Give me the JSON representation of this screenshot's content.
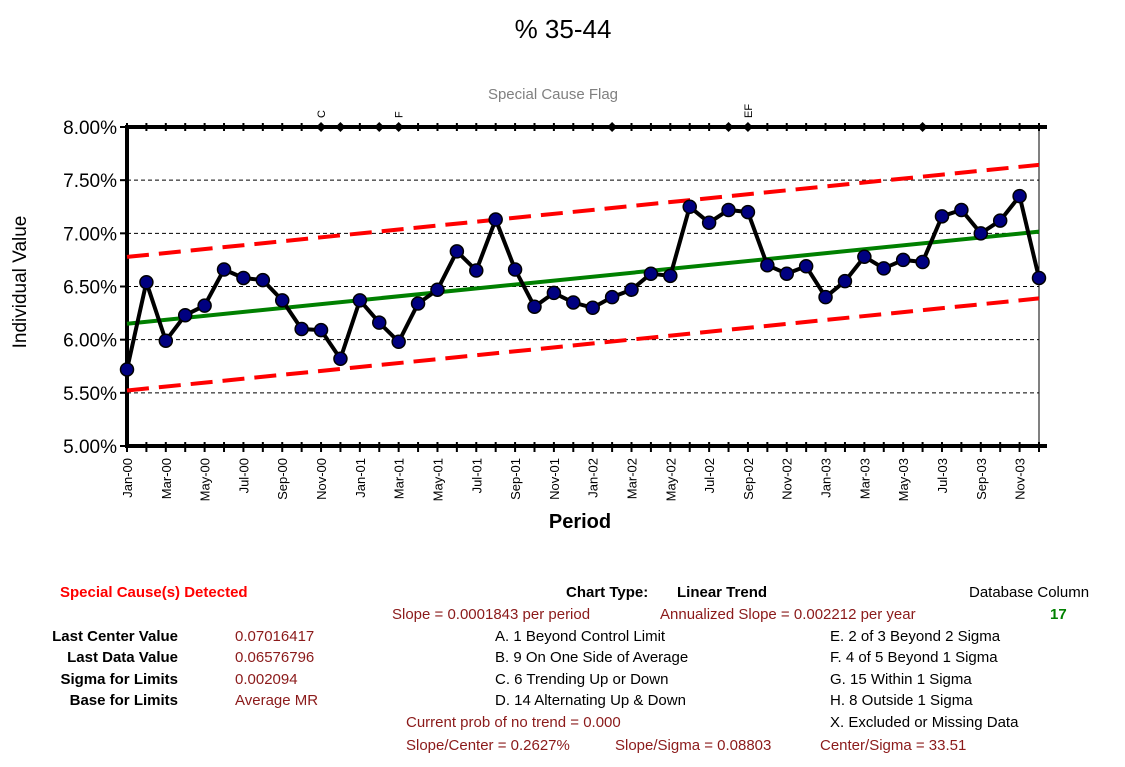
{
  "title": "% 35-44",
  "chart_data": {
    "type": "line",
    "title": "% 35-44",
    "flag_title": "Special Cause Flag",
    "xlabel": "Period",
    "ylabel": "Individual Value",
    "ylim": [
      0.05,
      0.08
    ],
    "yticks": [
      "8.00%",
      "7.50%",
      "7.00%",
      "6.50%",
      "6.00%",
      "5.50%",
      "5.00%"
    ],
    "yticks_values": [
      0.08,
      0.075,
      0.07,
      0.065,
      0.06,
      0.055,
      0.05
    ],
    "grid": "horizontal dashed",
    "xtick_labels": [
      "Jan-00",
      "Mar-00",
      "May-00",
      "Jul-00",
      "Sep-00",
      "Nov-00",
      "Jan-01",
      "Mar-01",
      "May-01",
      "Jul-01",
      "Sep-01",
      "Nov-01",
      "Jan-02",
      "Mar-02",
      "May-02",
      "Jul-02",
      "Sep-02",
      "Nov-02",
      "Jan-03",
      "Mar-03",
      "May-03",
      "Jul-03",
      "Sep-03",
      "Nov-03"
    ],
    "series": [
      {
        "values": [
          0.0572,
          0.0654,
          0.0599,
          0.0623,
          0.0632,
          0.0666,
          0.0658,
          0.0656,
          0.0637,
          0.061,
          0.0609,
          0.0582,
          0.0637,
          0.0616,
          0.0598,
          0.0634,
          0.0647,
          0.0683,
          0.0665,
          0.0713,
          0.0666,
          0.0631,
          0.0644,
          0.0635,
          0.063,
          0.064,
          0.0647,
          0.0662,
          0.066,
          0.0725,
          0.071,
          0.0722,
          0.072,
          0.067,
          0.0662,
          0.0669,
          0.064,
          0.0655,
          0.0678,
          0.0667,
          0.0675,
          0.0673,
          0.0716,
          0.0722,
          0.07,
          0.0712,
          0.0735,
          0.0658
        ],
        "color": "#000080",
        "line_color": "#000000"
      },
      {
        "values": [
          0.0615,
          0.07016
        ],
        "color": "#008000",
        "style": "solid"
      },
      {
        "values": [
          0.05522,
          0.06388
        ],
        "color": "#ff0000",
        "style": "dashed"
      },
      {
        "values": [
          0.06778,
          0.07644
        ],
        "color": "#ff0000",
        "style": "dashed"
      }
    ],
    "flag_points": [
      10,
      11,
      13,
      14,
      25,
      31,
      32,
      41
    ],
    "flag_labels": [
      {
        "index": 10,
        "text": "C"
      },
      {
        "index": 14,
        "text": "F"
      },
      {
        "index": 32,
        "text": "EF"
      }
    ]
  },
  "stats": {
    "special_cause": "Special Cause(s) Detected",
    "rows": [
      {
        "label": "Last Center Value",
        "value": "0.07016417"
      },
      {
        "label": "Last Data Value",
        "value": "0.06576796"
      },
      {
        "label": "Sigma for Limits",
        "value": "0.002094"
      },
      {
        "label": "Base for Limits",
        "value": "Average MR"
      }
    ]
  },
  "info": {
    "chart_type_label": "Chart Type:",
    "chart_type_value": "Linear Trend",
    "slope": "Slope = 0.0001843 per period",
    "annualized": "Annualized Slope = 0.002212 per year",
    "db_column_label": "Database Column",
    "db_column_value": "17",
    "rules_left": [
      "A.  1 Beyond Control Limit",
      "B.  9 On One Side of Average",
      "C.  6 Trending Up or Down",
      "D.  14 Alternating  Up & Down"
    ],
    "rules_right": [
      "E.  2 of 3 Beyond 2 Sigma",
      "F.  4 of 5 Beyond 1 Sigma",
      "G.  15 Within 1 Sigma",
      "H.  8 Outside 1 Sigma",
      "X.  Excluded or Missing Data"
    ],
    "prob_trend": "Current prob of no trend = 0.000",
    "slope_center": "Slope/Center = 0.2627%",
    "slope_sigma": "Slope/Sigma = 0.08803",
    "center_sigma": "Center/Sigma = 33.51"
  },
  "colors": {
    "data_marker": "#000080",
    "data_line": "#000000",
    "center_line": "#008000",
    "limit_line": "#ff0000",
    "value_text": "#8b1a1a"
  }
}
